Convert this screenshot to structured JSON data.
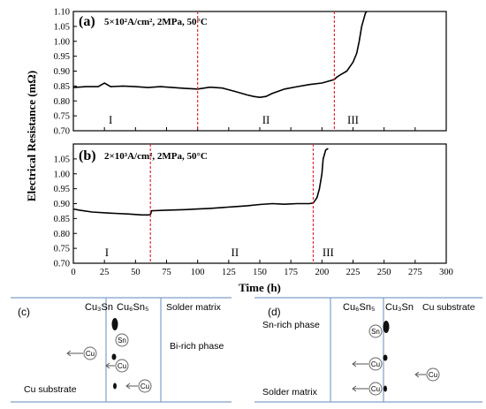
{
  "chart_data": [
    {
      "type": "line",
      "panel_label": "(a)",
      "condition": "5×10²A/cm², 2MPa, 50°C",
      "ylim": [
        0.7,
        1.1
      ],
      "yticks": [
        0.7,
        0.75,
        0.8,
        0.85,
        0.9,
        0.95,
        1.0,
        1.05,
        1.1
      ],
      "xlim": [
        0,
        300
      ],
      "stage_boundaries": [
        100,
        210
      ],
      "stage_labels": [
        {
          "text": "I",
          "x": 30
        },
        {
          "text": "II",
          "x": 155
        },
        {
          "text": "III",
          "x": 225
        }
      ],
      "series": [
        {
          "color": "#000000",
          "x": [
            0,
            10,
            20,
            25,
            30,
            40,
            50,
            60,
            70,
            80,
            90,
            100,
            110,
            120,
            130,
            140,
            145,
            150,
            155,
            160,
            170,
            180,
            190,
            200,
            205,
            210,
            212,
            215,
            220,
            225,
            228,
            230,
            232,
            235,
            237,
            240,
            250,
            260,
            300
          ],
          "y": [
            0.845,
            0.848,
            0.848,
            0.86,
            0.848,
            0.85,
            0.848,
            0.845,
            0.848,
            0.845,
            0.842,
            0.84,
            0.846,
            0.843,
            0.832,
            0.82,
            0.815,
            0.812,
            0.815,
            0.825,
            0.84,
            0.848,
            0.855,
            0.86,
            0.866,
            0.872,
            0.88,
            0.888,
            0.9,
            0.93,
            0.96,
            1.0,
            1.05,
            1.095,
            1.105,
            1.105,
            1.105,
            1.105,
            1.105
          ]
        }
      ]
    },
    {
      "type": "line",
      "panel_label": "(b)",
      "condition": "2×10³A/cm², 2MPa, 50°C",
      "ylim": [
        0.7,
        1.1
      ],
      "yticks": [
        0.7,
        0.75,
        0.8,
        0.85,
        0.9,
        0.95,
        1.0,
        1.05
      ],
      "xlim": [
        0,
        300
      ],
      "xticks": [
        0,
        25,
        50,
        75,
        100,
        125,
        150,
        175,
        200,
        225,
        250,
        275,
        300
      ],
      "xlabel": "Time (h)",
      "ylabel": "Electrical Resistance (mΩ)",
      "stage_boundaries": [
        62,
        193
      ],
      "stage_labels": [
        {
          "text": "I",
          "x": 27
        },
        {
          "text": "II",
          "x": 130
        },
        {
          "text": "III",
          "x": 205
        }
      ],
      "series": [
        {
          "color": "#000000",
          "x": [
            0,
            5,
            15,
            30,
            45,
            55,
            60,
            62,
            63,
            75,
            90,
            100,
            110,
            120,
            130,
            140,
            150,
            160,
            170,
            180,
            190,
            193,
            196,
            198,
            200,
            201,
            203,
            205
          ],
          "y": [
            0.882,
            0.878,
            0.872,
            0.868,
            0.865,
            0.862,
            0.862,
            0.863,
            0.876,
            0.878,
            0.88,
            0.882,
            0.884,
            0.887,
            0.89,
            0.893,
            0.897,
            0.9,
            0.898,
            0.9,
            0.9,
            0.902,
            0.92,
            0.95,
            1.0,
            1.05,
            1.08,
            1.085
          ]
        }
      ]
    }
  ],
  "panel_c": {
    "label": "(c)",
    "phase1": "Cu₃Sn",
    "phase2": "Cu₆Sn₅",
    "solder_matrix": "Solder matrix",
    "bi_rich": "Bi-rich phase",
    "substrate": "Cu substrate",
    "atoms": [
      "Sn",
      "Cu",
      "Cu",
      "Cu"
    ]
  },
  "panel_d": {
    "label": "(d)",
    "phase1": "Cu₆Sn₅",
    "phase2": "Cu₃Sn",
    "substrate": "Cu substrate",
    "sn_rich": "Sn-rich phase",
    "solder_matrix": "Solder matrix",
    "atoms": [
      "Sn",
      "Cu",
      "Cu",
      "Cu"
    ]
  },
  "colors": {
    "boundary": "#e8262b",
    "panel_line": "#7f9fc6",
    "data": "#000000"
  }
}
